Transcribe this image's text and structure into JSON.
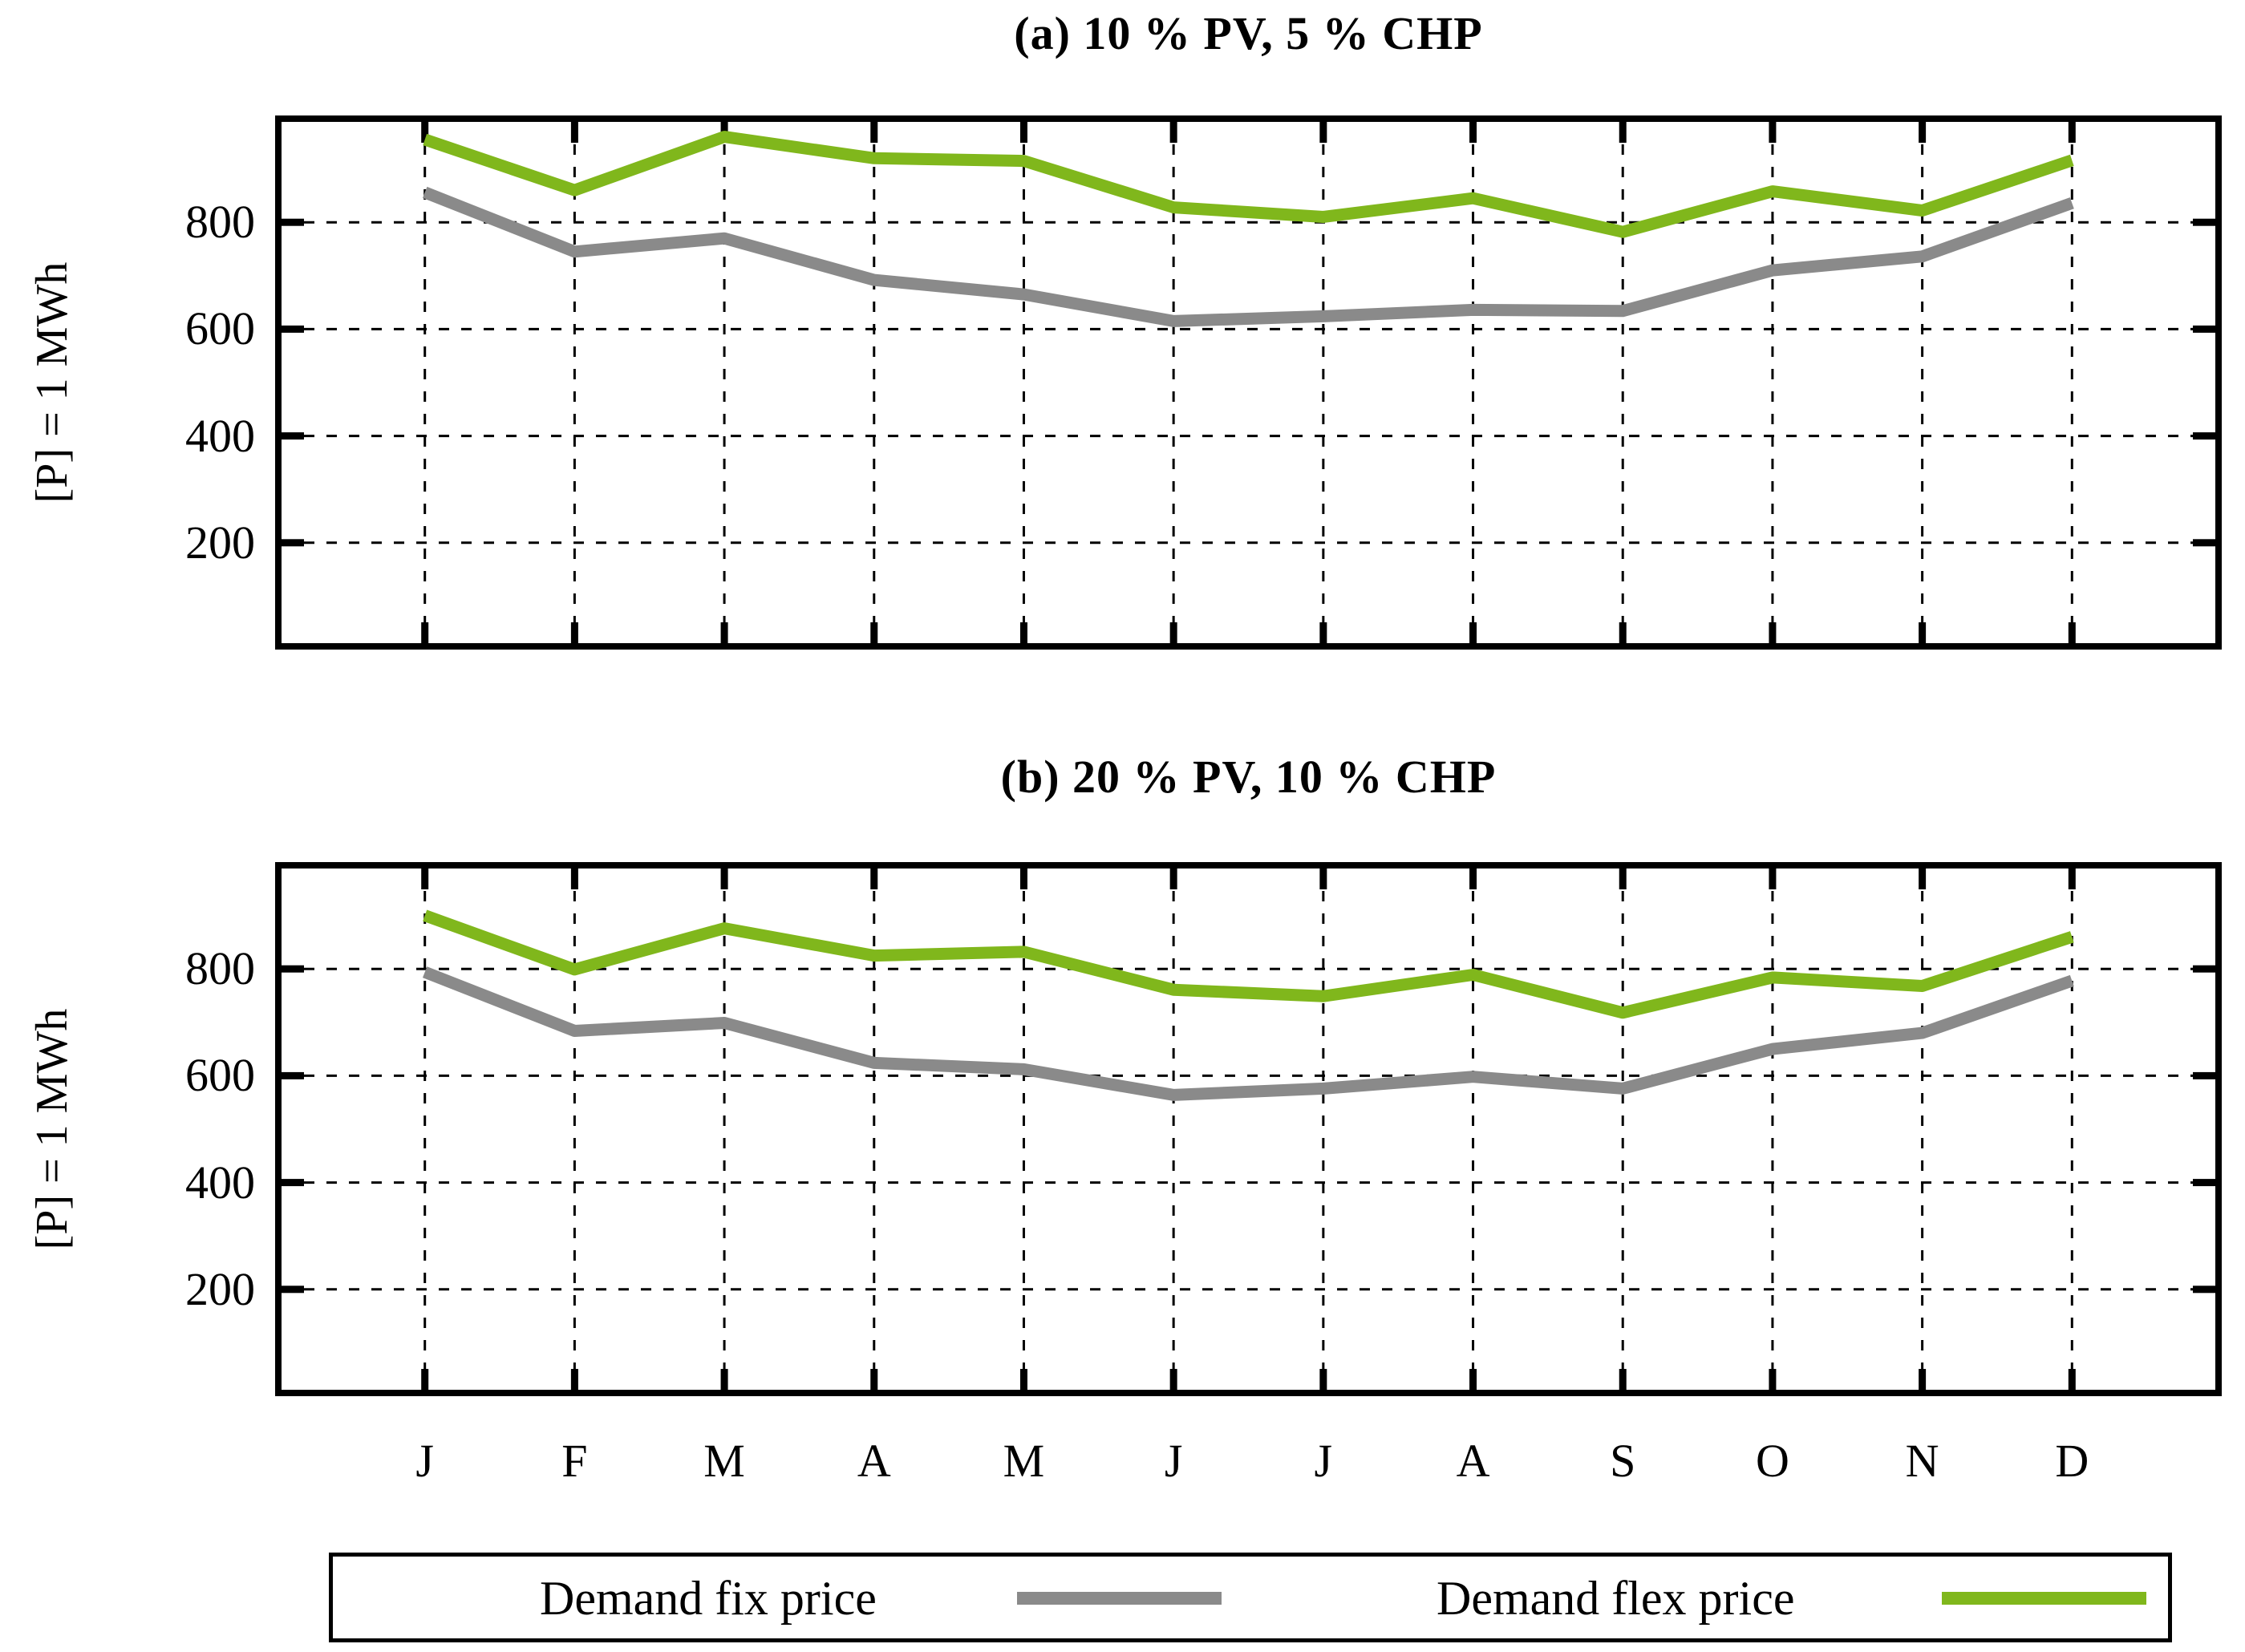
{
  "figure": {
    "background": "#ffffff",
    "axis_color": "#000000",
    "grid_style": "dashed"
  },
  "chart_data": [
    {
      "type": "line",
      "title": "(a) 10 % PV, 5 % CHP",
      "ylabel": "[P] = 1 MWh",
      "xlabel": "",
      "categories": [
        "J",
        "F",
        "M",
        "A",
        "M",
        "J",
        "J",
        "A",
        "S",
        "O",
        "N",
        "D"
      ],
      "ylim": [
        0,
        1000
      ],
      "yticks": [
        200,
        400,
        600,
        800
      ],
      "grid": true,
      "legend_position": "below-figure",
      "series": [
        {
          "name": "Demand fix price",
          "color": "#8a8a8a",
          "values": [
            856,
            745,
            770,
            692,
            665,
            615,
            624,
            636,
            634,
            710,
            736,
            836
          ]
        },
        {
          "name": "Demand flex price",
          "color": "#80b71c",
          "values": [
            955,
            860,
            960,
            920,
            915,
            828,
            810,
            845,
            782,
            858,
            822,
            916
          ]
        }
      ]
    },
    {
      "type": "line",
      "title": "(b) 20 % PV, 10  % CHP",
      "ylabel": "[P] = 1 MWh",
      "xlabel": "",
      "categories": [
        "J",
        "F",
        "M",
        "A",
        "M",
        "J",
        "J",
        "A",
        "S",
        "O",
        "N",
        "D"
      ],
      "ylim": [
        0,
        1000
      ],
      "yticks": [
        200,
        400,
        600,
        800
      ],
      "grid": true,
      "legend_position": "below-figure",
      "series": [
        {
          "name": "Demand fix price",
          "color": "#8a8a8a",
          "values": [
            794,
            684,
            699,
            624,
            612,
            564,
            576,
            598,
            576,
            650,
            680,
            778
          ]
        },
        {
          "name": "Demand flex price",
          "color": "#80b71c",
          "values": [
            900,
            799,
            876,
            825,
            832,
            761,
            749,
            789,
            718,
            784,
            768,
            860
          ]
        }
      ]
    }
  ],
  "legend": {
    "entries": [
      {
        "label": "Demand fix price",
        "color": "#8a8a8a"
      },
      {
        "label": "Demand flex price",
        "color": "#80b71c"
      }
    ]
  }
}
